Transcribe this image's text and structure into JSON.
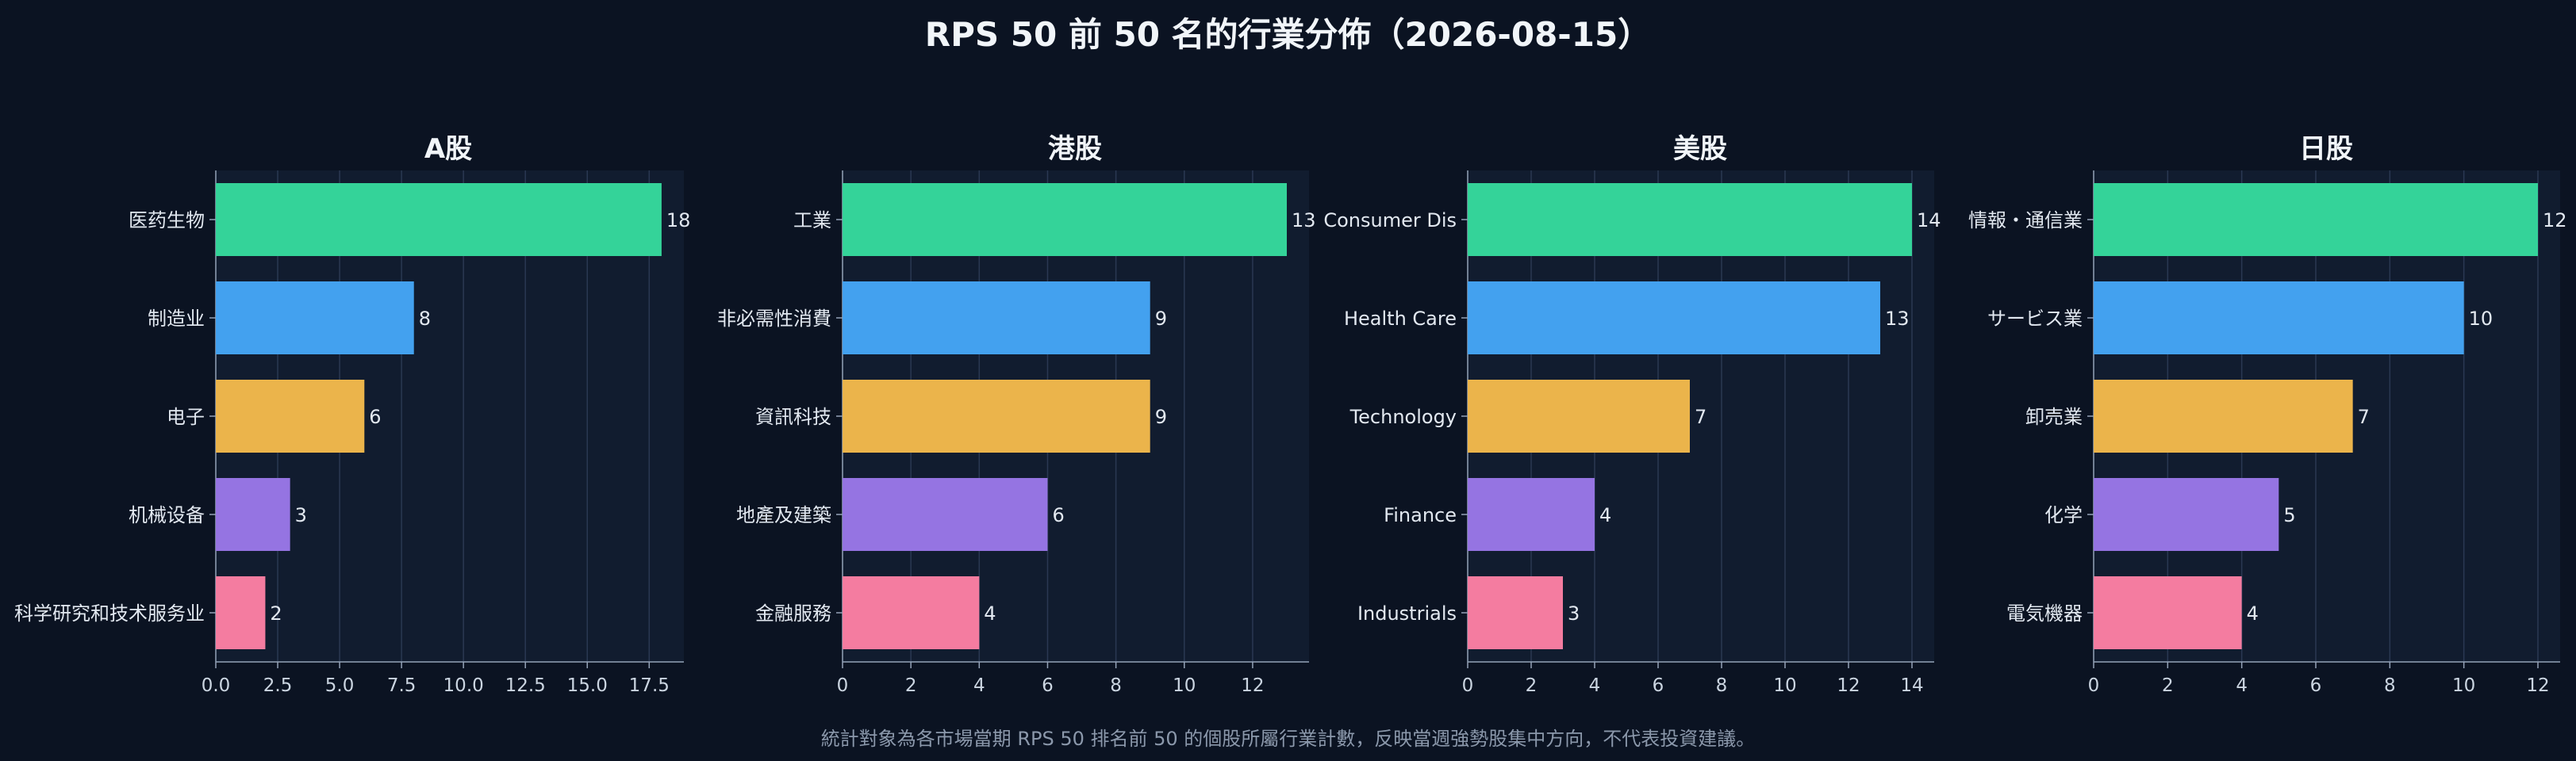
{
  "title": "RPS 50 前 50 名的行業分佈（2026-08-15）",
  "footnote": "統計對象為各市場當期 RPS 50 排名前 50 的個股所屬行業計數，反映當週強勢股集中方向，不代表投資建議。",
  "colors": {
    "background": "#0b1322",
    "panel": "#111c2f",
    "grid": "#2a3852",
    "axis": "#94a3b8",
    "bars": [
      "#34d399",
      "#43a1ef",
      "#ebb44b",
      "#9574e2",
      "#f47ca0"
    ]
  },
  "chart_data": [
    {
      "type": "bar",
      "orientation": "horizontal",
      "title": "A股",
      "categories": [
        "医药生物",
        "制造业",
        "电子",
        "机械设备",
        "科学研究和技术服务业"
      ],
      "values": [
        18,
        8,
        6,
        3,
        2
      ],
      "xticks": [
        0,
        2.5,
        5,
        7.5,
        10,
        12.5,
        15,
        17.5
      ],
      "xtick_labels": [
        "0.0",
        "2.5",
        "5.0",
        "7.5",
        "10.0",
        "12.5",
        "15.0",
        "17.5"
      ],
      "xlim": [
        0,
        18.9
      ],
      "grid": "vertical"
    },
    {
      "type": "bar",
      "orientation": "horizontal",
      "title": "港股",
      "categories": [
        "工業",
        "非必需性消費",
        "資訊科技",
        "地產及建築",
        "金融服務"
      ],
      "values": [
        13,
        9,
        9,
        6,
        4
      ],
      "xticks": [
        0,
        2,
        4,
        6,
        8,
        10,
        12
      ],
      "xtick_labels": [
        "0",
        "2",
        "4",
        "6",
        "8",
        "10",
        "12"
      ],
      "xlim": [
        0,
        13.65
      ],
      "grid": "vertical"
    },
    {
      "type": "bar",
      "orientation": "horizontal",
      "title": "美股",
      "categories": [
        "Consumer Dis",
        "Health Care",
        "Technology",
        "Finance",
        "Industrials"
      ],
      "values": [
        14,
        13,
        7,
        4,
        3
      ],
      "xticks": [
        0,
        2,
        4,
        6,
        8,
        10,
        12,
        14
      ],
      "xtick_labels": [
        "0",
        "2",
        "4",
        "6",
        "8",
        "10",
        "12",
        "14"
      ],
      "xlim": [
        0,
        14.7
      ],
      "grid": "vertical"
    },
    {
      "type": "bar",
      "orientation": "horizontal",
      "title": "日股",
      "categories": [
        "情報・通信業",
        "サービス業",
        "卸売業",
        "化学",
        "電気機器"
      ],
      "values": [
        12,
        10,
        7,
        5,
        4
      ],
      "xticks": [
        0,
        2,
        4,
        6,
        8,
        10,
        12
      ],
      "xtick_labels": [
        "0",
        "2",
        "4",
        "6",
        "8",
        "10",
        "12"
      ],
      "xlim": [
        0,
        12.6
      ],
      "grid": "vertical"
    }
  ]
}
